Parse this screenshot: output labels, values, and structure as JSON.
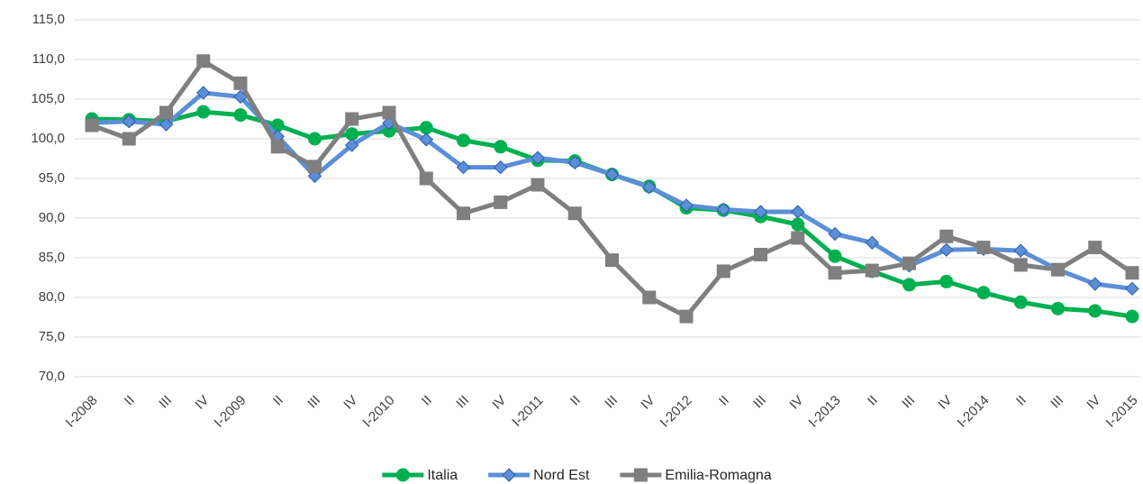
{
  "chart_data": {
    "type": "line",
    "categories": [
      "I-2008",
      "II",
      "III",
      "IV",
      "I-2009",
      "II",
      "III",
      "IV",
      "I-2010",
      "II",
      "III",
      "IV",
      "I-2011",
      "II",
      "III",
      "IV",
      "I-2012",
      "II",
      "III",
      "IV",
      "I-2013",
      "II",
      "III",
      "IV",
      "I-2014",
      "II",
      "III",
      "IV",
      "I-2015"
    ],
    "series": [
      {
        "name": "Italia",
        "color": "#00b050",
        "marker": "circle",
        "values": [
          102.5,
          102.4,
          102.2,
          103.4,
          103.0,
          101.7,
          100.0,
          100.6,
          101.0,
          101.4,
          99.8,
          99.0,
          97.3,
          97.2,
          95.5,
          94.0,
          91.3,
          91.0,
          90.2,
          89.2,
          85.2,
          83.3,
          81.6,
          82.0,
          80.6,
          79.4,
          78.6,
          78.3,
          77.6
        ]
      },
      {
        "name": "Nord Est",
        "color": "#5b8fd8",
        "marker": "diamond",
        "values": [
          102.0,
          102.2,
          101.8,
          105.8,
          105.3,
          100.3,
          95.3,
          99.2,
          102.0,
          99.9,
          96.4,
          96.4,
          97.6,
          97.0,
          95.5,
          93.9,
          91.6,
          91.1,
          90.8,
          90.8,
          88.0,
          86.9,
          84.0,
          86.0,
          86.1,
          85.9,
          83.5,
          81.7,
          81.1
        ]
      },
      {
        "name": "Emilia-Romagna",
        "color": "#7f7f7f",
        "marker": "square",
        "values": [
          101.7,
          100.0,
          103.3,
          109.8,
          107.0,
          99.0,
          96.5,
          102.5,
          103.3,
          95.0,
          90.6,
          92.0,
          94.2,
          90.6,
          84.7,
          80.0,
          77.6,
          83.3,
          85.4,
          87.5,
          83.1,
          83.4,
          84.3,
          87.7,
          86.3,
          84.1,
          83.5,
          86.3,
          83.1
        ]
      }
    ],
    "ylim": [
      70,
      115
    ],
    "yticks": [
      {
        "value": 70,
        "label": "70,0"
      },
      {
        "value": 75,
        "label": "75,0"
      },
      {
        "value": 80,
        "label": "80,0"
      },
      {
        "value": 85,
        "label": "85,0"
      },
      {
        "value": 90,
        "label": "90,0"
      },
      {
        "value": 95,
        "label": "95,0"
      },
      {
        "value": 100,
        "label": "100,0"
      },
      {
        "value": 105,
        "label": "105,0"
      },
      {
        "value": 110,
        "label": "110,0"
      },
      {
        "value": 115,
        "label": "115,0"
      }
    ],
    "grid": true,
    "legend": "bottom"
  }
}
